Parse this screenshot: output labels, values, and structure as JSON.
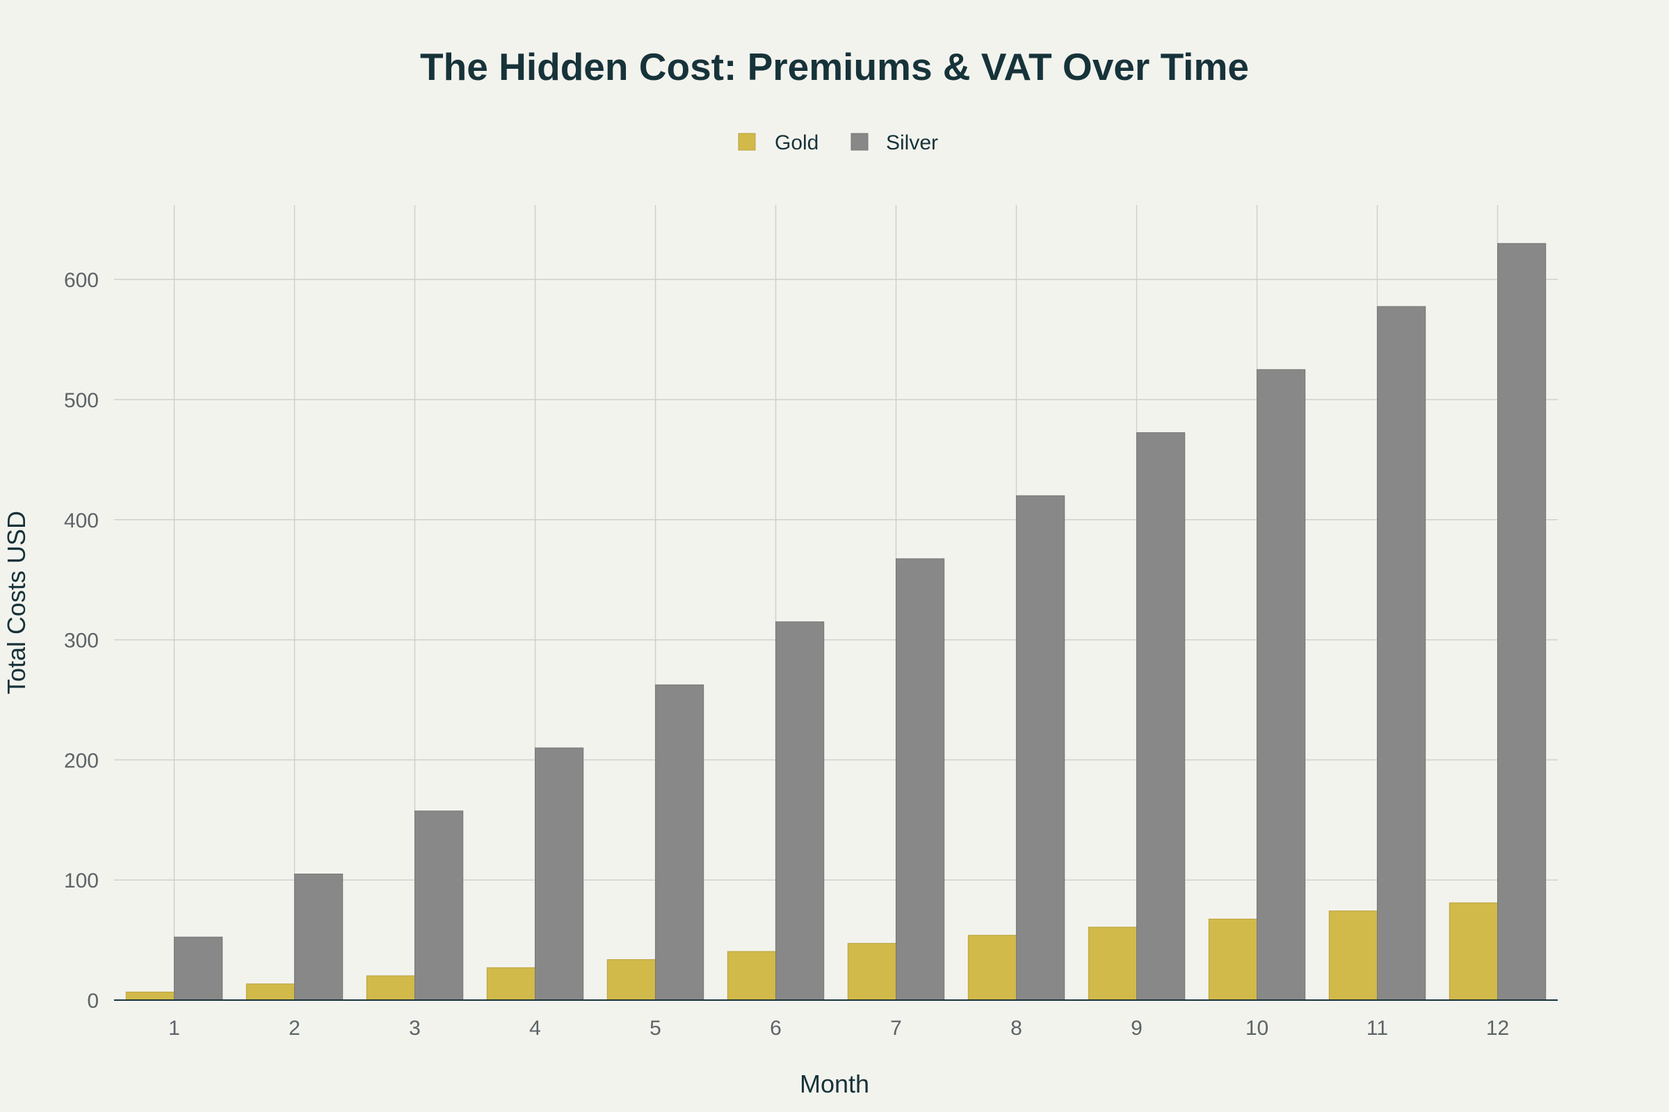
{
  "chart_data": {
    "type": "bar",
    "title": "The Hidden Cost: Premiums & VAT Over Time",
    "xlabel": "Month",
    "ylabel": "Total Costs USD",
    "categories": [
      "1",
      "2",
      "3",
      "4",
      "5",
      "6",
      "7",
      "8",
      "9",
      "10",
      "11",
      "12"
    ],
    "series": [
      {
        "name": "Gold",
        "color": "#d1b94a",
        "values": [
          6.75,
          13.5,
          20.25,
          27,
          33.75,
          40.5,
          47.25,
          54,
          60.75,
          67.5,
          74.25,
          81
        ]
      },
      {
        "name": "Silver",
        "color": "#888888",
        "values": [
          52.5,
          105,
          157.5,
          210,
          262.5,
          315,
          367.5,
          420,
          472.5,
          525,
          577.5,
          630
        ]
      }
    ],
    "yticks": [
      0,
      100,
      200,
      300,
      400,
      500,
      600
    ],
    "ylim": [
      0,
      662
    ],
    "grid": true,
    "legend_position": "top-center"
  }
}
